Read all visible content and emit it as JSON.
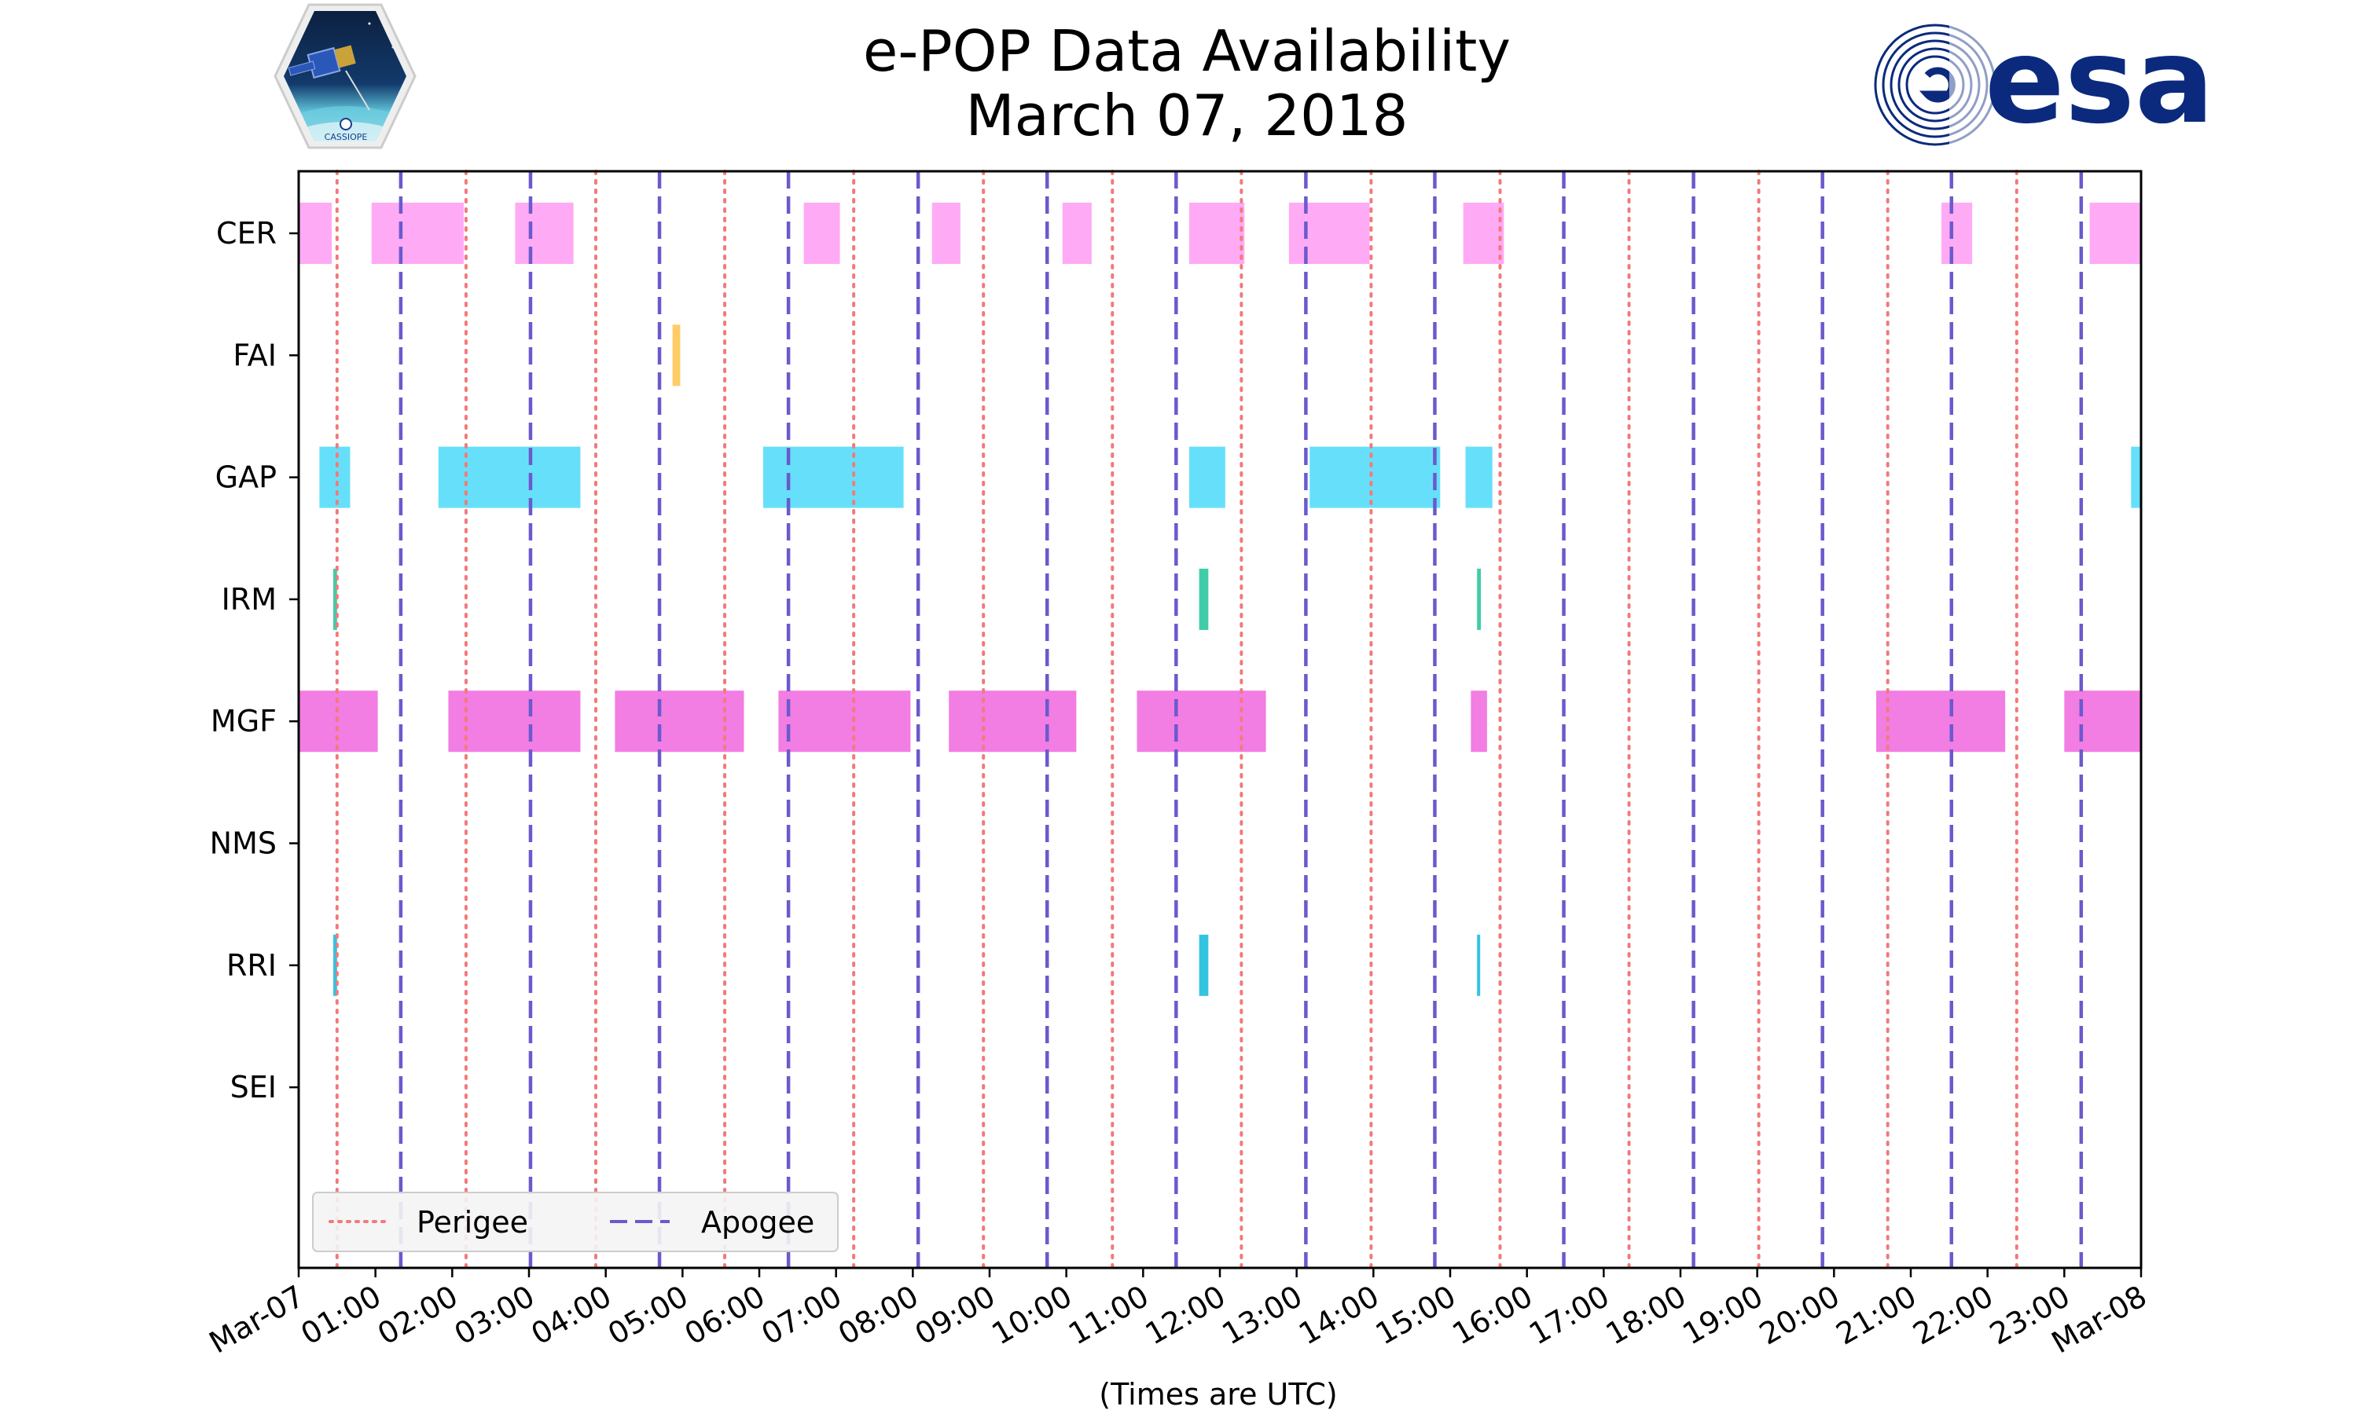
{
  "chart_data": {
    "type": "timeline",
    "title": "e-POP Data Availability",
    "subtitle": "March 07, 2018",
    "xlabel": "(Times are UTC)",
    "x_unit": "hours",
    "xlim": [
      0,
      24
    ],
    "x_tick_labels": [
      "Mar-07",
      "01:00",
      "02:00",
      "03:00",
      "04:00",
      "05:00",
      "06:00",
      "07:00",
      "08:00",
      "09:00",
      "10:00",
      "11:00",
      "12:00",
      "13:00",
      "14:00",
      "15:00",
      "16:00",
      "17:00",
      "18:00",
      "19:00",
      "20:00",
      "21:00",
      "22:00",
      "23:00",
      "Mar-08"
    ],
    "instruments": [
      "CER",
      "FAI",
      "GAP",
      "IRM",
      "MGF",
      "NMS",
      "RRI",
      "SEI"
    ],
    "colors": {
      "CER": "#ffaaf5",
      "FAI": "#ffcc66",
      "GAP": "#66e0fa",
      "IRM": "#40cca8",
      "MGF": "#f27de3",
      "NMS": "#999999",
      "RRI": "#33c4e0",
      "SEI": "#999999",
      "perigee": "#f27a7a",
      "apogee": "#6a5acd"
    },
    "intervals": {
      "CER": [
        [
          0.0,
          0.43
        ],
        [
          0.95,
          2.15
        ],
        [
          2.82,
          3.58
        ],
        [
          6.58,
          7.05
        ],
        [
          8.25,
          8.62
        ],
        [
          9.95,
          10.33
        ],
        [
          11.6,
          12.32
        ],
        [
          12.9,
          13.95
        ],
        [
          15.17,
          15.7
        ],
        [
          21.4,
          21.8
        ],
        [
          23.33,
          24.0
        ]
      ],
      "FAI": [
        [
          4.87,
          4.97
        ]
      ],
      "GAP": [
        [
          0.27,
          0.67
        ],
        [
          1.82,
          3.67
        ],
        [
          6.05,
          7.88
        ],
        [
          11.6,
          12.07
        ],
        [
          13.17,
          14.87
        ],
        [
          15.2,
          15.55
        ],
        [
          23.87,
          24.0
        ]
      ],
      "IRM": [
        [
          0.45,
          0.5
        ],
        [
          11.73,
          11.85
        ],
        [
          15.35,
          15.4
        ]
      ],
      "MGF": [
        [
          0.0,
          1.03
        ],
        [
          1.95,
          3.67
        ],
        [
          4.12,
          5.8
        ],
        [
          6.25,
          7.97
        ],
        [
          8.47,
          10.13
        ],
        [
          10.92,
          12.6
        ],
        [
          15.27,
          15.48
        ],
        [
          20.55,
          22.23
        ],
        [
          23.0,
          24.0
        ]
      ],
      "NMS": [],
      "RRI": [
        [
          0.45,
          0.5
        ],
        [
          11.73,
          11.85
        ],
        [
          15.35,
          15.38
        ]
      ],
      "SEI": []
    },
    "perigee_times": [
      0.5,
      2.18,
      3.87,
      5.55,
      7.23,
      8.92,
      10.6,
      12.28,
      13.97,
      15.65,
      17.33,
      19.02,
      20.7,
      22.38
    ],
    "apogee_times": [
      1.33,
      3.02,
      4.7,
      6.38,
      8.07,
      9.75,
      11.43,
      13.12,
      14.8,
      16.48,
      18.17,
      19.85,
      21.53,
      23.22
    ],
    "legend": {
      "position": "lower-left",
      "entries": [
        {
          "label": "Perigee",
          "style": "dotted"
        },
        {
          "label": "Apogee",
          "style": "dashed"
        }
      ]
    }
  },
  "logos": {
    "left": {
      "name": "CASSIOPE",
      "icon": "satellite-hexagon-icon"
    },
    "right": {
      "name": "esa",
      "icon": "esa-swirl-icon"
    }
  }
}
